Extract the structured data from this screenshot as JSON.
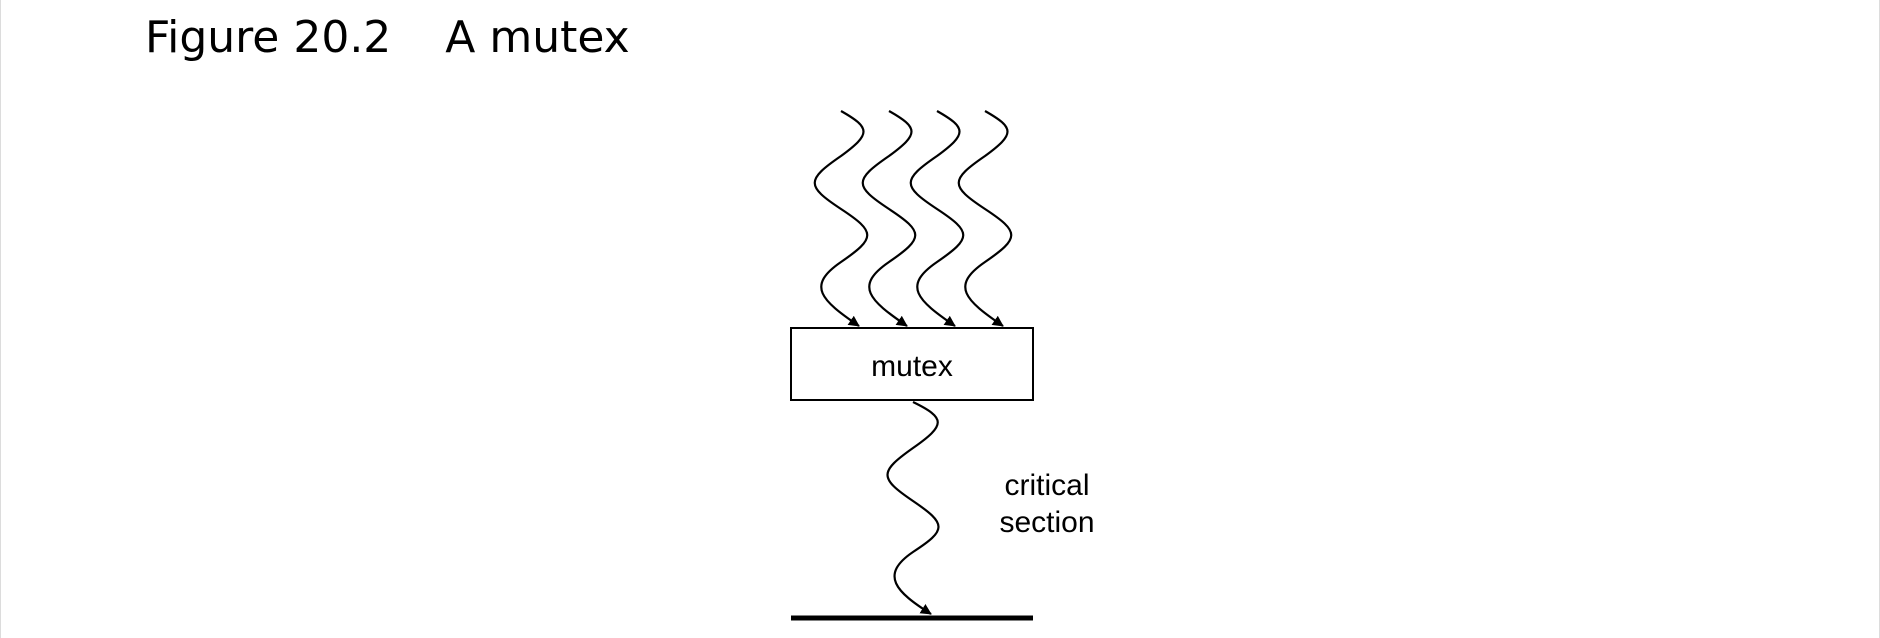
{
  "figure": {
    "number": "Figure 20.2",
    "title": "A mutex"
  },
  "diagram": {
    "box_label": "mutex",
    "side_label_line1": "critical",
    "side_label_line2": "section",
    "stroke_color": "#000000",
    "threads_in": 4,
    "threads_out": 1
  }
}
